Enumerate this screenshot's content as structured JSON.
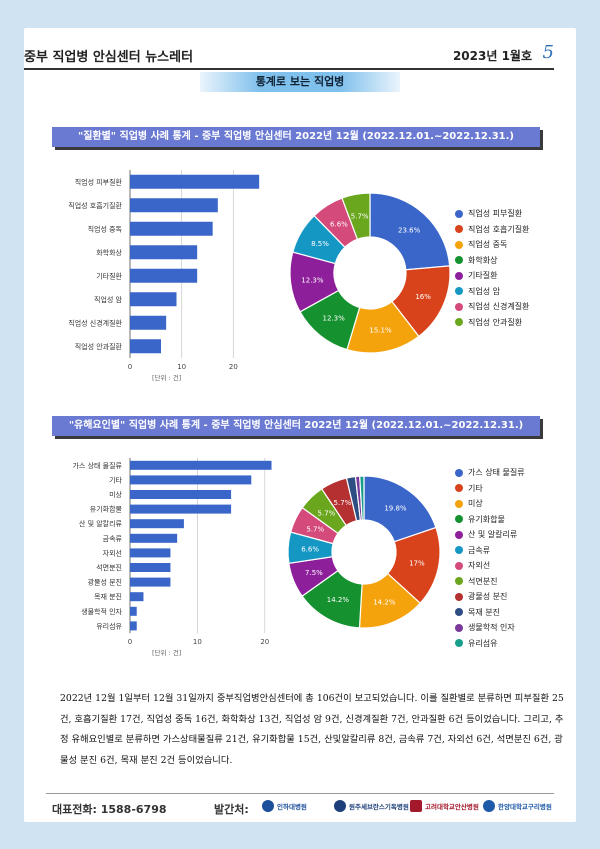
{
  "header": {
    "title": "중부 직업병 안심센터 뉴스레터",
    "date": "2023년 1월호",
    "page_number": "5"
  },
  "section_tag": "통계로 보는 직업병",
  "colors": [
    "#3b66c9",
    "#d9431c",
    "#f5a30c",
    "#15922f",
    "#8e1f9b",
    "#1597c4",
    "#d44a7b",
    "#6aa61e",
    "#b53030",
    "#2d4e82",
    "#7b3a99",
    "#1a9e8c"
  ],
  "charts": [
    {
      "banner": "\"질환별\" 직업병 사례 통계 - 중부 직업병 안심센터 2022년 12월 (2022.12.01.~2022.12.31.)",
      "unit_label": "[단위 : 건]",
      "chart_data": {
        "type": "bar",
        "orientation": "horizontal",
        "categories": [
          "직업성 피부질환",
          "직업성 호흡기질환",
          "직업성 중독",
          "화학화상",
          "기타질환",
          "직업성 암",
          "직업성 신경계질환",
          "직업성 안과질환"
        ],
        "values": [
          25,
          17,
          16,
          13,
          13,
          9,
          7,
          6
        ],
        "xticks": [
          "0",
          "10",
          "20"
        ],
        "xlim": [
          0,
          30
        ]
      },
      "pie_data": {
        "type": "pie",
        "labels": [
          "직업성 피부질환",
          "직업성 호흡기질환",
          "직업성 중독",
          "화학화상",
          "기타질환",
          "직업성 암",
          "직업성 신경계질환",
          "직업성 안과질환"
        ],
        "values": [
          23.6,
          16,
          15.1,
          12.3,
          12.3,
          8.5,
          6.6,
          5.7
        ],
        "value_labels": [
          "23.6%",
          "16%",
          "15.1%",
          "12.3%",
          "12.3%",
          "8.5%",
          "6.6%",
          "5.7%"
        ]
      }
    },
    {
      "banner": "\"유해요인별\" 직업병 사례 통계 - 중부 직업병 안심센터 2022년 12월 (2022.12.01.~2022.12.31.)",
      "unit_label": "[단위 : 건]",
      "chart_data": {
        "type": "bar",
        "orientation": "horizontal",
        "categories": [
          "가스 상태 물질류",
          "기타",
          "미상",
          "유기화합물",
          "산 및 알칼리류",
          "금속류",
          "자외선",
          "석면분진",
          "광물성 분진",
          "목재 분진",
          "생물학적 인자",
          "유리섬유"
        ],
        "values": [
          21,
          18,
          15,
          15,
          8,
          7,
          6,
          6,
          6,
          2,
          1,
          1
        ],
        "xticks": [
          "0",
          "10",
          "20"
        ],
        "xlim": [
          0,
          23
        ]
      },
      "pie_data": {
        "type": "pie",
        "labels": [
          "가스 상태 물질류",
          "기타",
          "미상",
          "유기화합물",
          "산 및 알칼리류",
          "금속류",
          "자외선",
          "석면분진",
          "광물성 분진",
          "목재 분진",
          "생물학적 인자",
          "유리섬유"
        ],
        "values": [
          19.8,
          17,
          14.2,
          14.2,
          7.5,
          6.6,
          5.7,
          5.7,
          5.7,
          1.9,
          0.9,
          0.9
        ],
        "value_labels": [
          "19.8%",
          "17%",
          "14.2%",
          "14.2%",
          "7.5%",
          "6.6%",
          "5.7%",
          "5.7%",
          "5.7%",
          "",
          "",
          ""
        ]
      }
    }
  ],
  "paragraph": "2022년 12월 1일부터 12월 31일까지 중부직업병안심센터에 총 106건이 보고되었습니다. 이를 질환별로 분류하면 피부질환 25건, 호흡기질환 17건, 직업성 중독 16건, 화학화상 13건, 직업성 암 9건, 신경계질환 7건, 안과질환 6건 등이었습니다. 그리고, 추정 유해요인별로 분류하면 가스상태물질류 21건, 유기화합물 15건, 산및알칼리류 8건, 금속류 7건, 자외선 6건, 석면분진 6건, 광물성 분진 6건, 목재 분진 2건 등이었습니다.",
  "footer": {
    "phone": "대표전화:  1588-6798",
    "publisher_label": "발간처:",
    "logos": [
      {
        "name": "인하대병원",
        "color": "#1b4f9c"
      },
      {
        "name": "원주세브란스기독병원",
        "color": "#1d3f7a"
      },
      {
        "name": "고려대학교안산병원",
        "color": "#a3182a"
      },
      {
        "name": "한양대학교구리병원",
        "color": "#1f5aa8"
      }
    ]
  }
}
